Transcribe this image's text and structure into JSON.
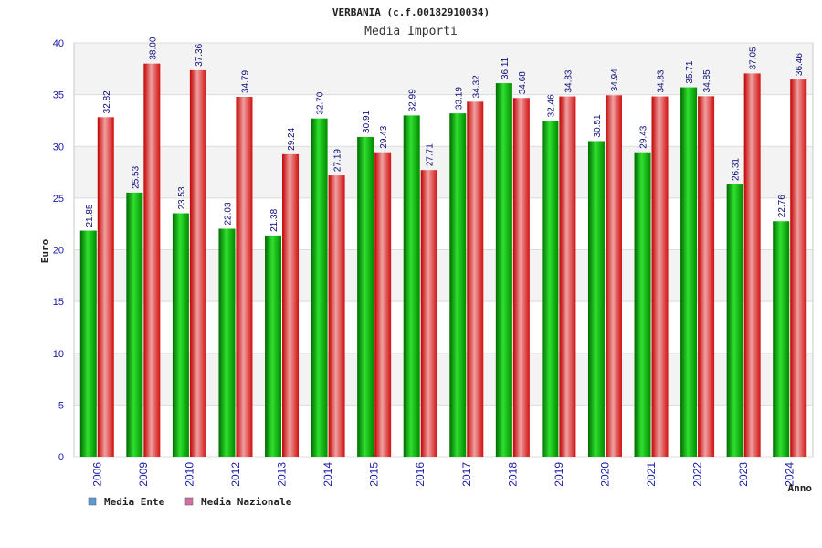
{
  "chart_data": {
    "type": "bar",
    "title": "VERBANIA (c.f.00182910034)",
    "subtitle": "Media Importi",
    "xlabel": "Anno",
    "ylabel": "Euro",
    "ylim": [
      0,
      40
    ],
    "yticks": [
      0,
      5,
      10,
      15,
      20,
      25,
      30,
      35,
      40
    ],
    "grid": true,
    "legend_position": "bottom-left",
    "categories": [
      "2006",
      "2009",
      "2010",
      "2012",
      "2013",
      "2014",
      "2015",
      "2016",
      "2017",
      "2018",
      "2019",
      "2020",
      "2021",
      "2022",
      "2023",
      "2024"
    ],
    "series": [
      {
        "name": "Media Ente",
        "color": "#00b800",
        "legend_color": "#5b9bd5",
        "values": [
          21.85,
          25.53,
          23.53,
          22.03,
          21.38,
          32.7,
          30.91,
          32.99,
          33.19,
          36.11,
          32.46,
          30.51,
          29.43,
          35.71,
          26.31,
          22.76
        ],
        "labels": [
          "21.85",
          "25.53",
          "23.53",
          "22.03",
          "21.38",
          "32.70",
          "30.91",
          "32.99",
          "33.19",
          "36.11",
          "32.46",
          "30.51",
          "29.43",
          "35.71",
          "26.31",
          "22.76"
        ]
      },
      {
        "name": "Media Nazionale",
        "color": "#e01818",
        "legend_color": "#d070a0",
        "values": [
          32.82,
          38.0,
          37.36,
          34.79,
          29.24,
          27.19,
          29.43,
          27.71,
          34.32,
          34.68,
          34.83,
          34.94,
          34.83,
          34.85,
          37.05,
          36.46
        ],
        "labels": [
          "32.82",
          "38.00",
          "37.36",
          "34.79",
          "29.24",
          "27.19",
          "29.43",
          "27.71",
          "34.32",
          "34.68",
          "34.83",
          "34.94",
          "34.83",
          "34.85",
          "37.05",
          "36.46"
        ]
      }
    ]
  }
}
